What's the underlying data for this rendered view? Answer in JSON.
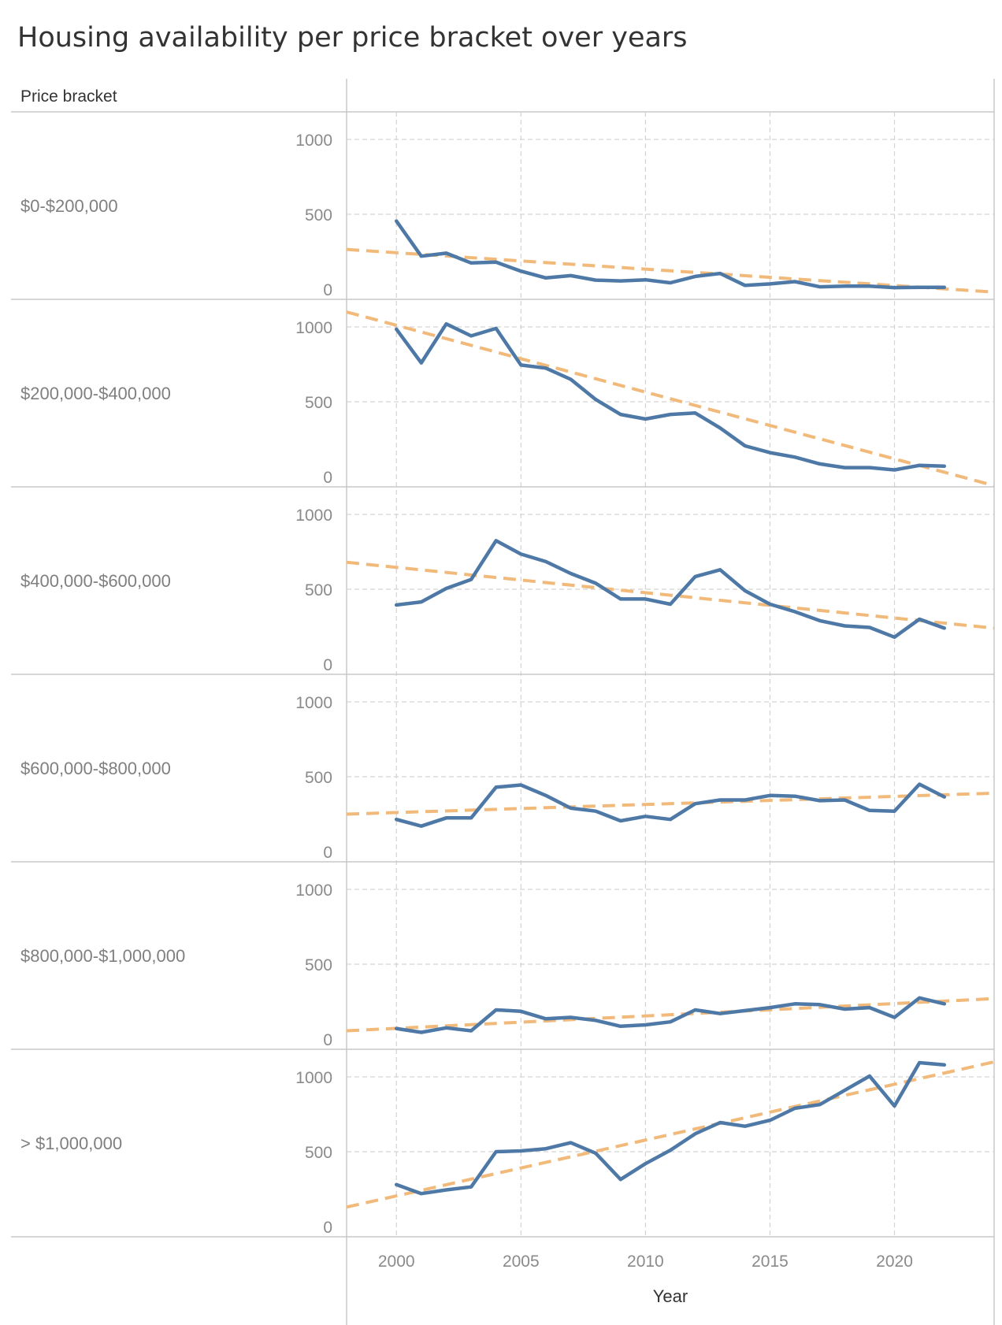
{
  "title": "Housing availability per price bracket over years",
  "row_header": "Price bracket",
  "chart_data": {
    "type": "line",
    "title": "Housing availability per price bracket over years",
    "xlabel": "Year",
    "ylabel": "",
    "x": [
      2000,
      2001,
      2002,
      2003,
      2004,
      2005,
      2006,
      2007,
      2008,
      2009,
      2010,
      2011,
      2012,
      2013,
      2014,
      2015,
      2016,
      2017,
      2018,
      2019,
      2020,
      2021,
      2022
    ],
    "xlim": [
      1998,
      2024
    ],
    "x_ticks": [
      2000,
      2005,
      2010,
      2015,
      2020
    ],
    "ylim": [
      0,
      1000
    ],
    "y_ticks": [
      0,
      500,
      1000
    ],
    "grid": true,
    "trend_lines": true,
    "panels": [
      {
        "row_label": "$0-$200,000",
        "values": [
          455,
          220,
          240,
          175,
          180,
          120,
          75,
          90,
          60,
          55,
          62,
          42,
          85,
          105,
          25,
          35,
          50,
          15,
          20,
          20,
          10,
          12,
          12
        ],
        "trend": {
          "x": [
            1998,
            2024
          ],
          "y": [
            265,
            -20
          ]
        }
      },
      {
        "row_label": "$200,000-$400,000",
        "values": [
          985,
          760,
          1020,
          940,
          990,
          745,
          725,
          650,
          515,
          415,
          385,
          415,
          425,
          325,
          205,
          160,
          130,
          85,
          60,
          60,
          45,
          75,
          70
        ],
        "trend": {
          "x": [
            1998,
            2024
          ],
          "y": [
            1100,
            -60
          ]
        }
      },
      {
        "row_label": "$400,000-$600,000",
        "values": [
          395,
          415,
          505,
          565,
          825,
          735,
          685,
          605,
          540,
          435,
          435,
          400,
          585,
          630,
          490,
          400,
          350,
          290,
          255,
          245,
          180,
          300,
          240
        ],
        "trend": {
          "x": [
            1998,
            2024
          ],
          "y": [
            680,
            240
          ]
        }
      },
      {
        "row_label": "$600,000-$800,000",
        "values": [
          215,
          170,
          225,
          225,
          430,
          445,
          375,
          290,
          270,
          205,
          235,
          215,
          320,
          345,
          345,
          375,
          370,
          340,
          345,
          275,
          270,
          450,
          365
        ],
        "trend": {
          "x": [
            1998,
            2024
          ],
          "y": [
            250,
            390
          ]
        }
      },
      {
        "row_label": "$800,000-$1,000,000",
        "values": [
          70,
          45,
          75,
          55,
          195,
          185,
          135,
          145,
          125,
          85,
          95,
          115,
          195,
          170,
          190,
          210,
          235,
          230,
          200,
          210,
          145,
          275,
          235
        ],
        "trend": {
          "x": [
            1998,
            2024
          ],
          "y": [
            55,
            270
          ]
        }
      },
      {
        "row_label": "> $1,000,000",
        "values": [
          280,
          220,
          245,
          265,
          500,
          505,
          520,
          560,
          490,
          315,
          420,
          510,
          620,
          695,
          670,
          710,
          790,
          815,
          910,
          1005,
          805,
          1095,
          1080
        ],
        "trend": {
          "x": [
            1998,
            2024
          ],
          "y": [
            130,
            1100
          ]
        }
      }
    ]
  },
  "colors": {
    "series": "#4e79a7",
    "trend": "#f1b97a",
    "grid": "#d3d3d3",
    "border": "#c8c8c8",
    "text": "#333333",
    "axis_text": "#8a8a8a"
  }
}
